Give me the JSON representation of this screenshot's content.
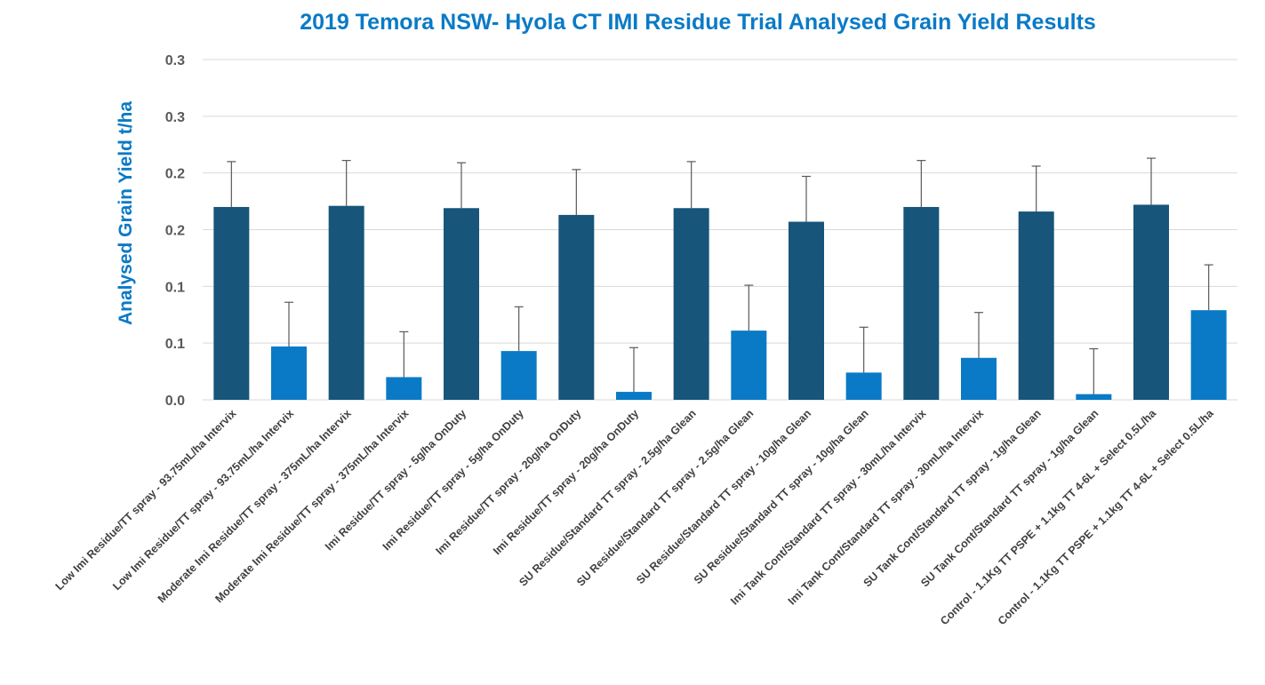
{
  "chart_data": {
    "type": "bar",
    "title": "2019 Temora NSW- Hyola CT IMI Residue Trial Analysed Grain Yield Results",
    "xlabel": "",
    "ylabel": "Analysed Grain Yield t/ha",
    "ylim": [
      0,
      0.3
    ],
    "y_ticks": [
      0,
      0.05,
      0.1,
      0.15,
      0.2,
      0.25,
      0.3
    ],
    "y_tick_labels": [
      "0.0",
      "0.1",
      "0.1",
      "0.2",
      "0.2",
      "0.3",
      "0.3"
    ],
    "grid": true,
    "legend": "none",
    "colors": {
      "dark": "#17557a",
      "light": "#0a7ac6",
      "title": "#0a7ac6",
      "error": "#595959",
      "grid": "#d9d9d9"
    },
    "categories": [
      "Low Imi Residue/TT spray - 93.75mL/ha Intervix",
      "Low Imi Residue/TT spray - 93.75mL/ha Intervix",
      "Moderate Imi Residue/TT spray - 375mL/ha Intervix",
      "Moderate Imi Residue/TT spray - 375mL/ha Intervix",
      "Imi Residue/TT spray - 5g/ha OnDuty",
      "Imi Residue/TT spray - 5g/ha OnDuty",
      "Imi Residue/TT spray - 20g/ha OnDuty",
      "Imi Residue/TT spray - 20g/ha OnDuty",
      "SU Residue/Standard TT spray - 2.5g/ha Glean",
      "SU Residue/Standard TT spray - 2.5g/ha Glean",
      "SU Residue/Standard TT spray - 10g/ha Glean",
      "SU Residue/Standard TT spray - 10g/ha Glean",
      "Imi Tank Cont/Standard TT spray - 30mL/ha Intervix",
      "Imi Tank Cont/Standard TT spray - 30mL/ha Intervix",
      "SU Tank Cont/Standard TT spray - 1g/ha Glean",
      "SU Tank Cont/Standard TT spray - 1g/ha Glean",
      "Control - 1.1Kg TT PSPE + 1.1kg TT 4-6L + Select 0.5L/ha",
      "Control - 1.1Kg TT PSPE + 1.1kg TT 4-6L + Select 0.5L/ha"
    ],
    "values": [
      0.17,
      0.047,
      0.171,
      0.02,
      0.169,
      0.043,
      0.163,
      0.007,
      0.169,
      0.061,
      0.157,
      0.024,
      0.17,
      0.037,
      0.166,
      0.005,
      0.172,
      0.079
    ],
    "error_upper": [
      0.21,
      0.086,
      0.211,
      0.06,
      0.209,
      0.082,
      0.203,
      0.046,
      0.21,
      0.101,
      0.197,
      0.064,
      0.211,
      0.077,
      0.206,
      0.045,
      0.213,
      0.119
    ],
    "bar_color_keys": [
      "dark",
      "light",
      "dark",
      "light",
      "dark",
      "light",
      "dark",
      "light",
      "dark",
      "light",
      "dark",
      "light",
      "dark",
      "light",
      "dark",
      "light",
      "dark",
      "light"
    ]
  }
}
